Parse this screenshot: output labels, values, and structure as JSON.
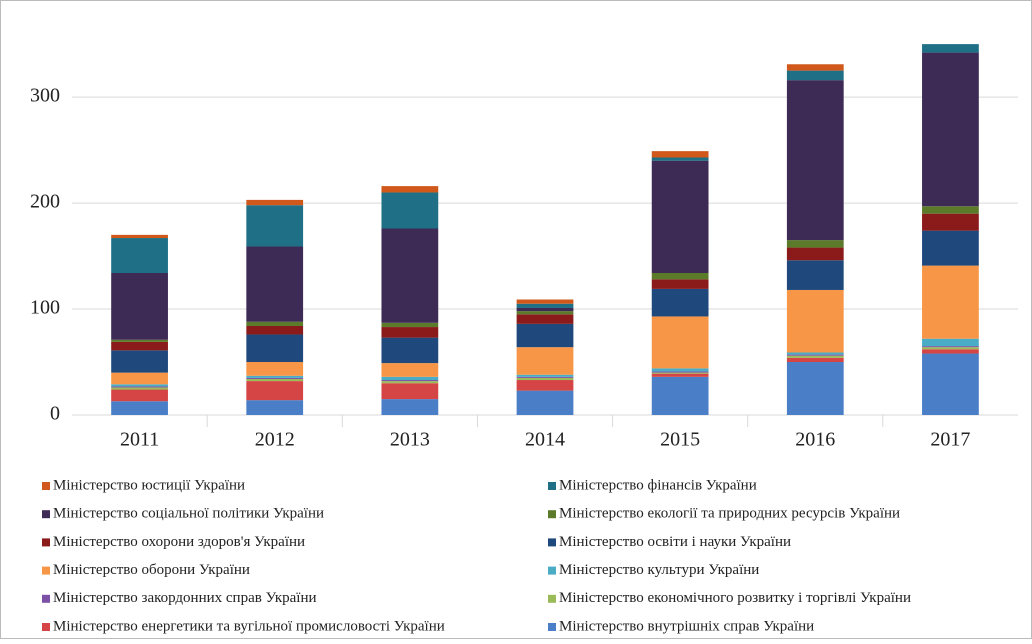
{
  "chart_data": {
    "type": "stacked_bar",
    "categories": [
      "2011",
      "2012",
      "2013",
      "2014",
      "2015",
      "2016",
      "2017"
    ],
    "ylim": [
      0,
      352
    ],
    "yticks": [
      0,
      100,
      200,
      300
    ],
    "grid": true,
    "legend": "bottom",
    "series": [
      {
        "name": "Міністерство внутрішніх справ України",
        "color": "#4a7fc8",
        "values": [
          13,
          14,
          15,
          23,
          36,
          50,
          58
        ]
      },
      {
        "name": "Міністерство енергетики та вугільної промисловості України",
        "color": "#d64545",
        "values": [
          11,
          18,
          15,
          10,
          3,
          4,
          4
        ]
      },
      {
        "name": "Міністерство економічного розвитку і торгівлі України",
        "color": "#9bbb59",
        "values": [
          2,
          2,
          2,
          2,
          1,
          2,
          2
        ]
      },
      {
        "name": "Міністерство закордонних справ України",
        "color": "#7e4fa6",
        "values": [
          1,
          1,
          1,
          1,
          1,
          1,
          1
        ]
      },
      {
        "name": "Міністерство культури України",
        "color": "#4bacc6",
        "values": [
          2,
          2,
          3,
          2,
          3,
          2,
          7
        ]
      },
      {
        "name": "Міністерство оборони України",
        "color": "#f79646",
        "values": [
          11,
          13,
          13,
          26,
          49,
          59,
          69
        ]
      },
      {
        "name": "Міністерство освіти і науки України",
        "color": "#1f497d",
        "values": [
          21,
          26,
          24,
          22,
          26,
          28,
          33
        ]
      },
      {
        "name": "Міністерство охорони здоров'я України",
        "color": "#8b1a1a",
        "values": [
          8,
          8,
          10,
          9,
          9,
          12,
          16
        ]
      },
      {
        "name": "Міністерство екології та природних ресурсів України",
        "color": "#5b7a2a",
        "values": [
          2,
          4,
          4,
          3,
          6,
          7,
          7
        ]
      },
      {
        "name": "Міністерство соціальної політики України",
        "color": "#3d2a55",
        "values": [
          63,
          71,
          89,
          3,
          106,
          151,
          145
        ]
      },
      {
        "name": "Міністерство фінансів України",
        "color": "#1f6f87",
        "values": [
          33,
          39,
          34,
          4,
          3,
          9,
          8
        ]
      },
      {
        "name": "Міністерство юстиції України",
        "color": "#d0581a",
        "values": [
          3,
          5,
          6,
          4,
          6,
          6,
          0
        ]
      }
    ]
  }
}
